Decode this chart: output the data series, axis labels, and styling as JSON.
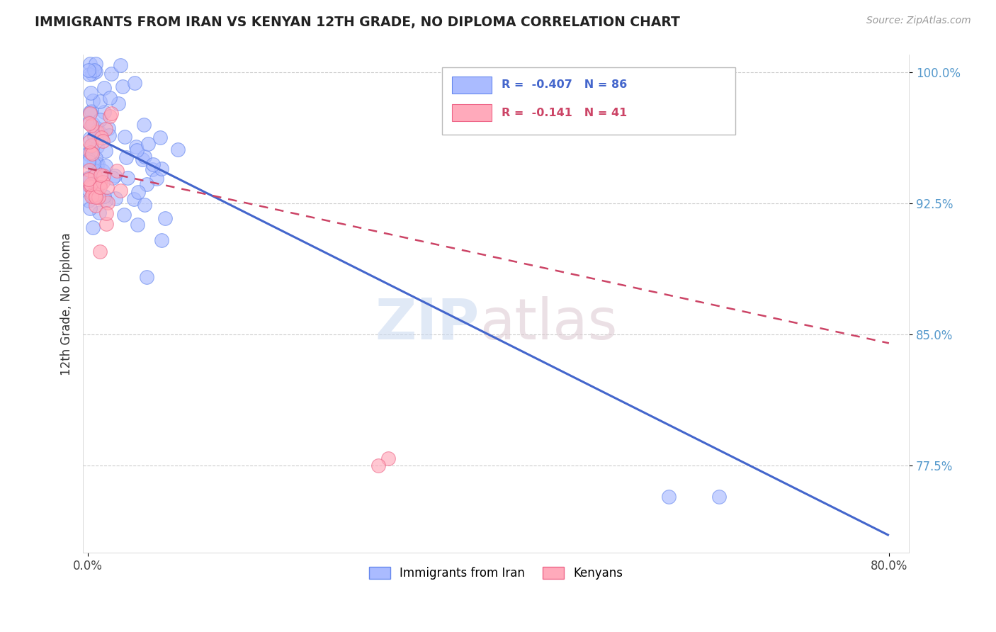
{
  "title": "IMMIGRANTS FROM IRAN VS KENYAN 12TH GRADE, NO DIPLOMA CORRELATION CHART",
  "source": "Source: ZipAtlas.com",
  "ylabel": "12th Grade, No Diploma",
  "xlim": [
    0.0,
    0.8
  ],
  "ylim": [
    0.725,
    1.01
  ],
  "ytick_positions": [
    0.775,
    0.85,
    0.925,
    1.0
  ],
  "ytick_labels": [
    "77.5%",
    "85.0%",
    "92.5%",
    "100.0%"
  ],
  "xtick_positions": [
    0.0,
    0.8
  ],
  "xtick_labels": [
    "0.0%",
    "80.0%"
  ],
  "blue_scatter_color": "#aabbff",
  "pink_scatter_color": "#ffaabb",
  "blue_edge_color": "#6688ee",
  "pink_edge_color": "#ee6688",
  "blue_line_color": "#4466cc",
  "pink_line_color": "#cc4466",
  "grid_color": "#cccccc",
  "ytick_color": "#5599cc",
  "background_color": "#ffffff",
  "iran_line_x0": 0.0,
  "iran_line_y0": 0.965,
  "iran_line_x1": 0.8,
  "iran_line_y1": 0.735,
  "kenya_line_x0": 0.0,
  "kenya_line_y0": 0.945,
  "kenya_line_x1": 0.8,
  "kenya_line_y1": 0.845,
  "legend_r_blue": "R =  -0.407",
  "legend_n_blue": "N = 86",
  "legend_r_pink": "R =  -0.141",
  "legend_n_pink": "N = 41",
  "legend_label_blue": "Immigrants from Iran",
  "legend_label_pink": "Kenyans",
  "watermark_zip": "ZIP",
  "watermark_atlas": "atlas"
}
